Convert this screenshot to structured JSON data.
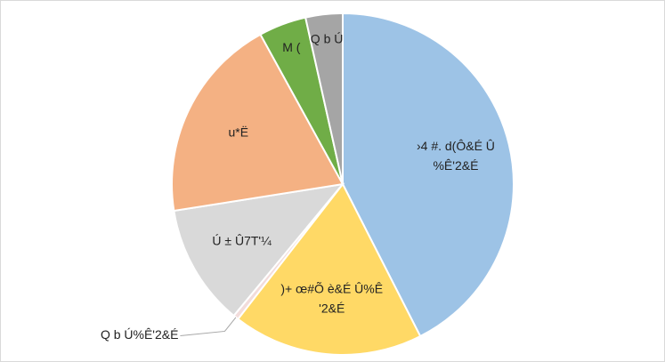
{
  "chart_data": {
    "type": "pie",
    "categories": [
      [
        "›4 #. d(Ô&É Û",
        "%Ê'2&É"
      ],
      [
        ")+ œ#Õ è&É Û%Ê",
        "'2&É"
      ],
      [
        "Q b Ú%Ê'2&É"
      ],
      [
        "Ú ± Û7T'¼"
      ],
      [
        "u*Ë"
      ],
      [
        "M ("
      ],
      [
        "Q b Ú"
      ]
    ],
    "values": [
      42.5,
      18,
      0.5,
      11.5,
      19.5,
      4.5,
      3.5
    ],
    "colors": [
      "#9dc3e6",
      "#ffd966",
      "#f2dcdb",
      "#d9d9d9",
      "#f4b183",
      "#70ad47",
      "#a5a5a5"
    ]
  }
}
